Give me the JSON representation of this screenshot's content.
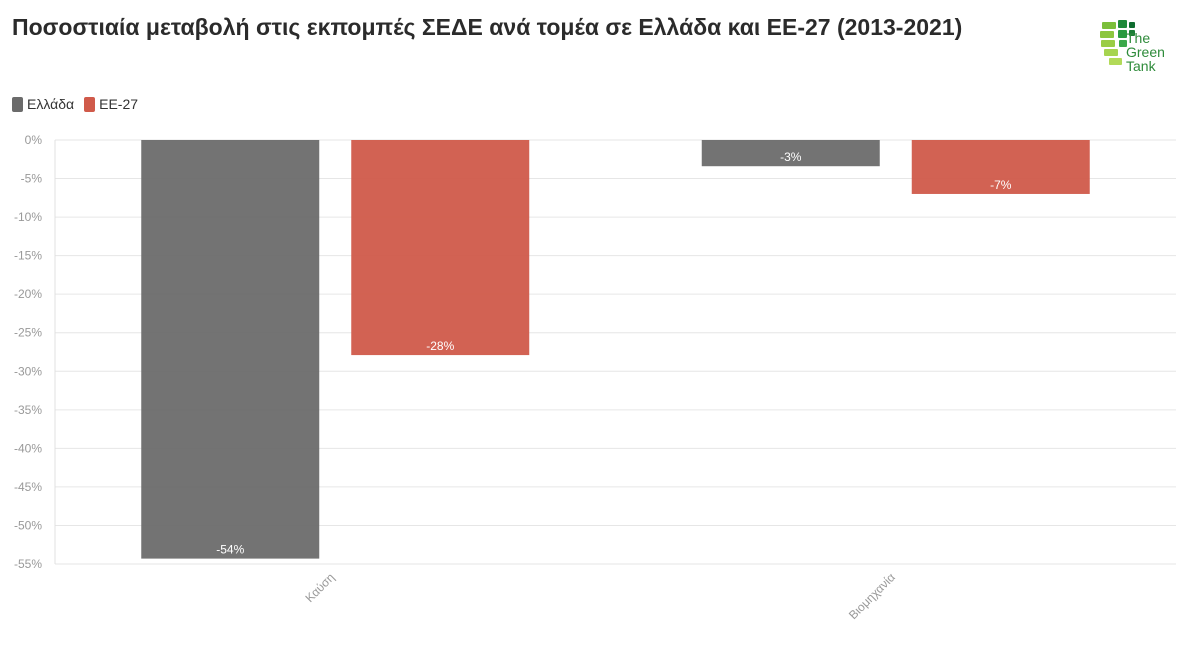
{
  "title": "Ποσοστιαία μεταβολή στις εκπομπές ΣΕΔΕ ανά τομέα σε Ελλάδα και ΕΕ-27 (2013-2021)",
  "logo": {
    "line1": "The",
    "line2": "Green",
    "line3": "Tank",
    "color": "#2e8b3a"
  },
  "colors": {
    "greece": "#6b6b6b",
    "eu27": "#d05a4a",
    "grid": "#e6e6e6"
  },
  "chart_data": {
    "type": "bar",
    "categories": [
      "Καύση",
      "Βιομηχανία"
    ],
    "series": [
      {
        "name": "Ελλάδα",
        "values": [
          -54.3,
          -3.4
        ],
        "labels": [
          "-54%",
          "-3%"
        ],
        "color": "#6b6b6b"
      },
      {
        "name": "ΕΕ-27",
        "values": [
          -27.9,
          -7.0
        ],
        "labels": [
          "-28%",
          "-7%"
        ],
        "color": "#d05a4a"
      }
    ],
    "ylim": [
      -55,
      0
    ],
    "yticks": [
      0,
      -5,
      -10,
      -15,
      -20,
      -25,
      -30,
      -35,
      -40,
      -45,
      -50,
      -55
    ],
    "ytick_labels": [
      "0%",
      "-5%",
      "-10%",
      "-15%",
      "-20%",
      "-25%",
      "-30%",
      "-35%",
      "-40%",
      "-45%",
      "-50%",
      "-55%"
    ],
    "legend": "top-left",
    "grid": true
  }
}
